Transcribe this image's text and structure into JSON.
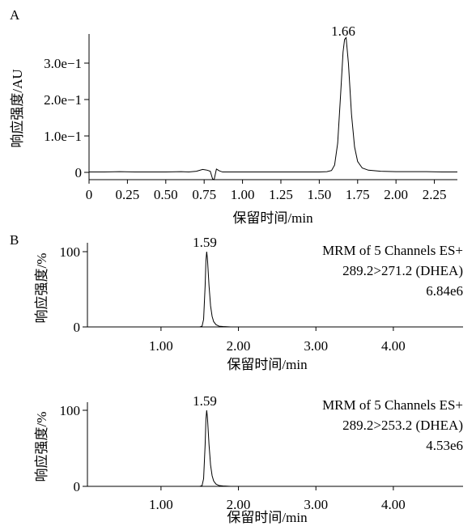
{
  "panel_a": {
    "letter": "A",
    "ylabel": "响应强度/AU",
    "xlabel": "保留时间/min",
    "peak_label": "1.66",
    "xticks": [
      "0",
      "0.25",
      "0.50",
      "0.75",
      "1.00",
      "1.25",
      "1.50",
      "1.75",
      "2.00",
      "2.25"
    ],
    "yticks": [
      "0",
      "1.0e−1",
      "2.0e−1",
      "3.0e−1"
    ]
  },
  "panel_b": {
    "letter": "B",
    "top": {
      "ylabel": "响应强度/%",
      "xlabel": "保留时间/min",
      "peak_label": "1.59",
      "ann_line1": "MRM of 5 Channels ES+",
      "ann_line2": "289.2>271.2 (DHEA)",
      "ann_line3": "6.84e6",
      "xticks": [
        "1.00",
        "2.00",
        "3.00",
        "4.00"
      ],
      "yticks": [
        "0",
        "100"
      ]
    },
    "bottom": {
      "ylabel": "响应强度/%",
      "xlabel": "保留时间/min",
      "peak_label": "1.59",
      "ann_line1": "MRM of 5 Channels ES+",
      "ann_line2": "289.2>253.2 (DHEA)",
      "ann_line3": "4.53e6",
      "xticks": [
        "1.00",
        "2.00",
        "3.00",
        "4.00"
      ],
      "yticks": [
        "0",
        "100"
      ]
    }
  },
  "chart_data": [
    {
      "type": "line",
      "panel": "A",
      "xlabel": "保留时间/min",
      "ylabel": "响应强度/AU",
      "xlim": [
        0,
        2.4
      ],
      "ylim": [
        -0.02,
        0.38
      ],
      "grid": false,
      "annotations": [
        {
          "x": 1.66,
          "text": "1.66"
        }
      ],
      "series": [
        {
          "x": [
            0,
            0.1,
            0.2,
            0.3,
            0.4,
            0.5,
            0.6,
            0.65,
            0.7,
            0.74,
            0.77,
            0.79,
            0.805,
            0.815,
            0.83,
            0.85,
            0.87,
            0.9,
            1.0,
            1.1,
            1.2,
            1.3,
            1.4,
            1.5,
            1.55,
            1.58,
            1.6,
            1.62,
            1.64,
            1.655,
            1.665,
            1.675,
            1.69,
            1.71,
            1.73,
            1.75,
            1.78,
            1.82,
            1.9,
            2.0,
            2.1,
            2.2,
            2.3,
            2.4
          ],
          "y": [
            0.001,
            0.001,
            0.002,
            0.001,
            0.001,
            0.001,
            0.002,
            0.001,
            0.003,
            0.008,
            0.006,
            0.003,
            -0.018,
            -0.02,
            0.009,
            0.004,
            0.001,
            0.001,
            0.001,
            0.001,
            0.001,
            0.001,
            0.001,
            0.001,
            0.002,
            0.005,
            0.02,
            0.08,
            0.22,
            0.33,
            0.365,
            0.37,
            0.3,
            0.16,
            0.07,
            0.03,
            0.012,
            0.006,
            0.003,
            0.002,
            0.002,
            0.002,
            0.001,
            0.001
          ]
        }
      ]
    },
    {
      "type": "line",
      "panel": "B-top",
      "title": "MRM of 5 Channels ES+",
      "subtitle": "289.2>271.2 (DHEA)",
      "xlabel": "保留时间/min",
      "ylabel": "响应强度/%",
      "xlim": [
        0.05,
        4.9
      ],
      "ylim": [
        0,
        100
      ],
      "annotations": [
        {
          "x": 1.59,
          "text": "1.59"
        },
        {
          "text": "6.84e6"
        }
      ],
      "series": [
        {
          "x": [
            0.05,
            1.5,
            1.53,
            1.55,
            1.57,
            1.58,
            1.59,
            1.6,
            1.62,
            1.64,
            1.66,
            1.68,
            1.71,
            1.75,
            1.8,
            1.9,
            2.5,
            4.9
          ],
          "y": [
            0,
            0,
            1,
            10,
            55,
            88,
            100,
            90,
            55,
            28,
            14,
            7,
            3,
            1,
            0.5,
            0,
            0,
            0
          ]
        }
      ]
    },
    {
      "type": "line",
      "panel": "B-bottom",
      "title": "MRM of 5 Channels ES+",
      "subtitle": "289.2>253.2 (DHEA)",
      "xlabel": "保留时间/min",
      "ylabel": "响应强度/%",
      "xlim": [
        0.05,
        4.9
      ],
      "ylim": [
        0,
        100
      ],
      "annotations": [
        {
          "x": 1.59,
          "text": "1.59"
        },
        {
          "text": "4.53e6"
        }
      ],
      "series": [
        {
          "x": [
            0.05,
            1.5,
            1.53,
            1.55,
            1.57,
            1.58,
            1.59,
            1.6,
            1.62,
            1.64,
            1.66,
            1.68,
            1.71,
            1.75,
            1.8,
            1.9,
            2.5,
            4.9
          ],
          "y": [
            0,
            0,
            1,
            10,
            55,
            88,
            100,
            90,
            55,
            28,
            14,
            7,
            3,
            1,
            0.5,
            0,
            0,
            0
          ]
        }
      ]
    }
  ]
}
